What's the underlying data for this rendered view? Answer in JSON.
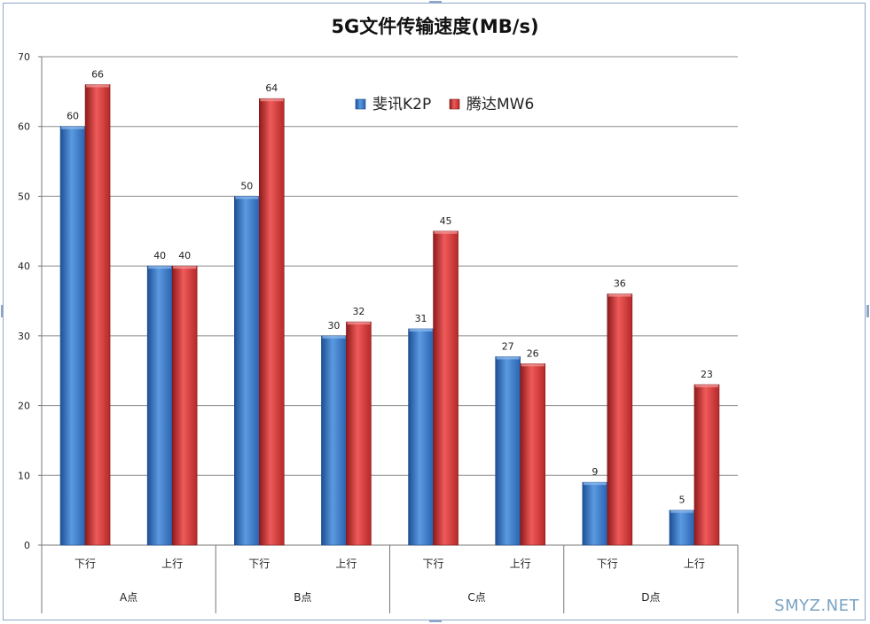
{
  "chart_data": {
    "type": "bar",
    "title": "5G文件传输速度(MB/s)",
    "xlabel": "",
    "ylabel": "",
    "ylim": [
      0,
      70
    ],
    "yticks": [
      0,
      10,
      20,
      30,
      40,
      50,
      60,
      70
    ],
    "grid": true,
    "legend_position": "top-center",
    "groups": [
      "A点",
      "B点",
      "C点",
      "D点"
    ],
    "categories": [
      "下行",
      "上行",
      "下行",
      "上行",
      "下行",
      "上行",
      "下行",
      "上行"
    ],
    "series": [
      {
        "name": "斐讯K2P",
        "color": "#3a78c8",
        "values": [
          60,
          40,
          50,
          30,
          31,
          27,
          9,
          5
        ]
      },
      {
        "name": "腾达MW6",
        "color": "#d23a3a",
        "values": [
          66,
          40,
          64,
          32,
          45,
          26,
          36,
          23
        ]
      }
    ]
  },
  "watermark": "SMYZ.NET"
}
